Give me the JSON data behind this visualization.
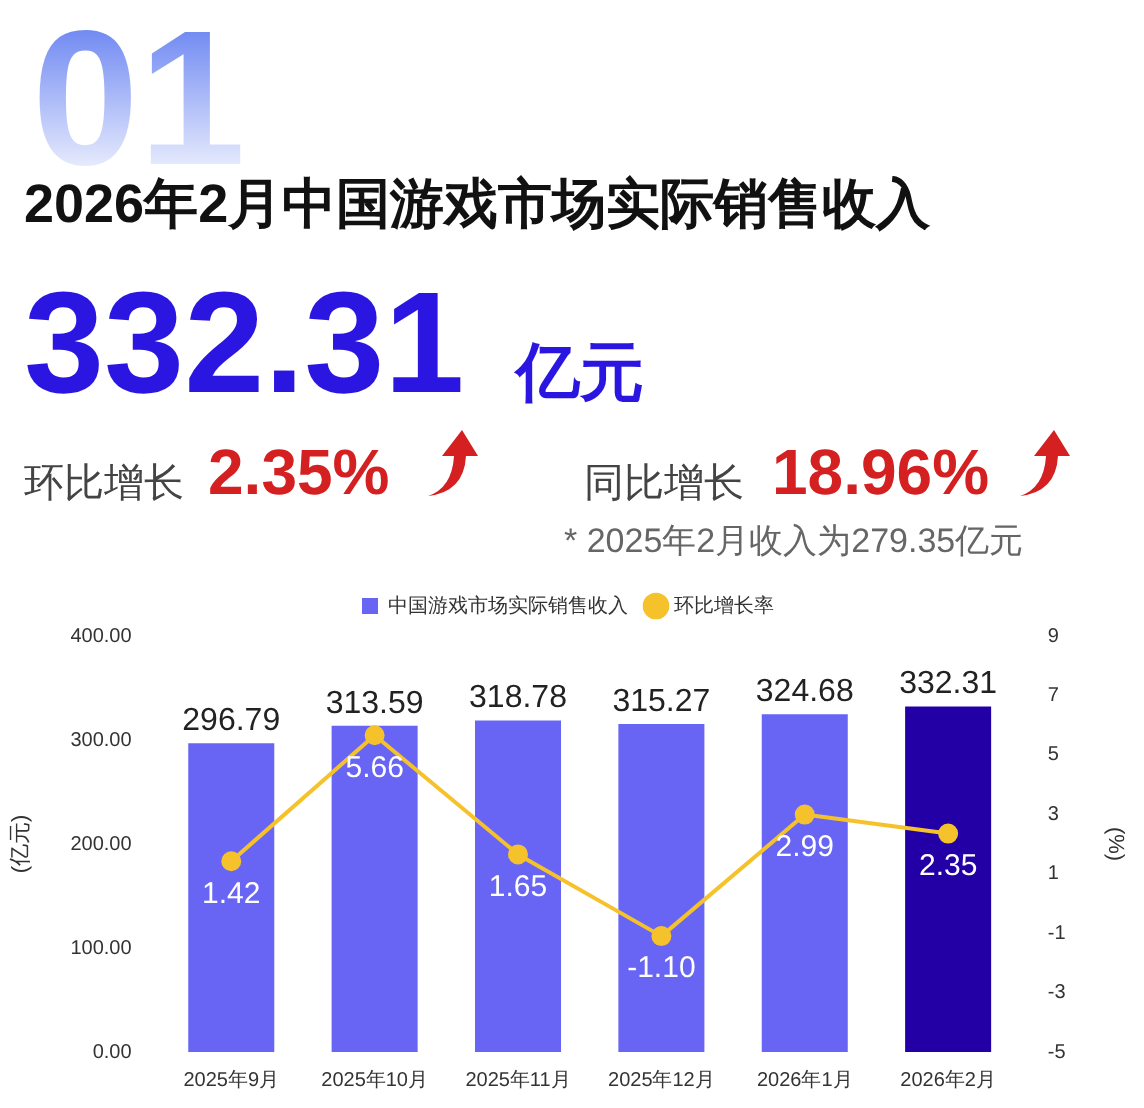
{
  "chart_data": {
    "type": "bar",
    "title": "2026年2月中国游戏市场实际销售收入",
    "annotations": [
      "01",
      "332.31",
      "亿元",
      "环比增长",
      "2.35%",
      "同比增长",
      "18.96%",
      "* 2025年2月收入为279.35亿元"
    ],
    "ylabel": "(亿元)",
    "y2label": "(%)",
    "categories": [
      "2025年9月",
      "2025年10月",
      "2025年11月",
      "2025年12月",
      "2026年1月",
      "2026年2月"
    ],
    "series": [
      {
        "name": "中国游戏市场实际销售收入",
        "color": "#6865f4",
        "colors": [
          "#6865f4",
          "#6865f4",
          "#6865f4",
          "#6865f4",
          "#6865f4",
          "#2200a6"
        ],
        "values": [
          296.79,
          313.59,
          318.78,
          315.27,
          324.68,
          332.31
        ],
        "value_labels": [
          "296.79",
          "313.59",
          "318.78",
          "315.27",
          "324.68",
          "332.31"
        ]
      },
      {
        "name": "环比增长率",
        "type": "line",
        "axis": "y2",
        "color": "#f5c22c",
        "values": [
          1.42,
          5.66,
          1.65,
          -1.1,
          2.99,
          2.35
        ],
        "value_labels": [
          "1.42",
          "5.66",
          "1.65",
          "-1.10",
          "2.99",
          "2.35"
        ]
      }
    ],
    "ylim": [
      0,
      400
    ],
    "yticks": [
      {
        "value": 0,
        "label": "0.00"
      },
      {
        "value": 100,
        "label": "100.00"
      },
      {
        "value": 200,
        "label": "200.00"
      },
      {
        "value": 300,
        "label": "300.00"
      },
      {
        "value": 400,
        "label": "400.00"
      }
    ],
    "y2lim": [
      -5,
      9
    ],
    "y2ticks": [
      -5,
      -3,
      -1,
      1,
      3,
      5,
      7,
      9
    ],
    "grid": false,
    "legend": "top",
    "marker": "circle"
  }
}
